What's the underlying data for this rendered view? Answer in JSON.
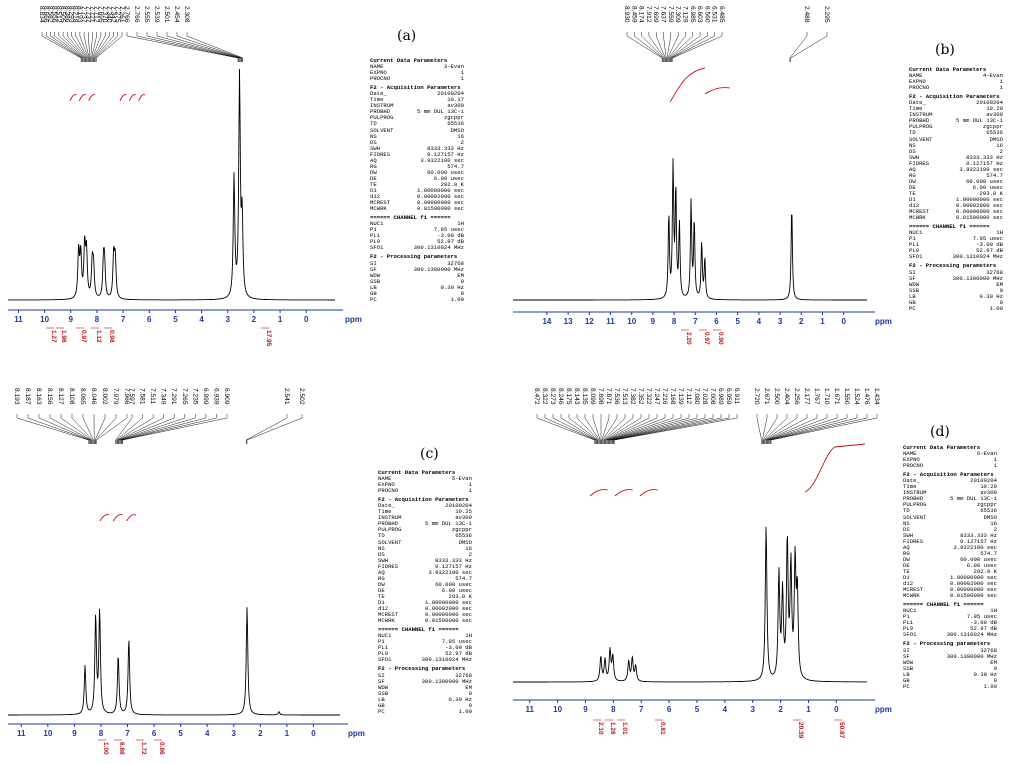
{
  "colors": {
    "spectrum": "#000000",
    "axis": "#1a3a9a",
    "integral": "#c0121a"
  },
  "parameters": {
    "a": {
      "name": "3-Evan",
      "time": "10.17",
      "te": "292.9 K"
    },
    "b": {
      "name": "4-Evan",
      "time": "10.20",
      "te": "293.0 K"
    },
    "c": {
      "name": "5-Evan",
      "time": "10.25",
      "te": "293.0 K"
    },
    "d": {
      "name": "6-Evan",
      "time": "10.29",
      "te": "292.9 K"
    },
    "common": {
      "header": "Current Data Parameters",
      "expno": "1",
      "procno": "1",
      "acq_header": "F2 - Acquisition Parameters",
      "date": "20100204",
      "instrum": "av300",
      "probhd": "5 mm DUL 13C-1",
      "pulprog": "zgcppr",
      "td": "65536",
      "solvent": "DMSO",
      "ns": "16",
      "ds": "2",
      "swh": "8333.333 Hz",
      "fidres": "0.127157 Hz",
      "aq": "3.9322100 sec",
      "rg": "574.7",
      "dw": "60.000 usec",
      "de": "6.00 usec",
      "d1": "1.00000000 sec",
      "d12": "0.00002000 sec",
      "mcrest": "0.00000000 sec",
      "mcwrk": "0.01500000 sec",
      "ch_header": "====== CHANNEL f1 ======",
      "nuc1": "1H",
      "p1": "7.95 usec",
      "pl1": "-3.00 dB",
      "pl9": "52.97 dB",
      "sfo1": "300.1310024 MHz",
      "proc_header": "F2 - Processing parameters",
      "si": "32768",
      "sf": "300.1300000 MHz",
      "wdw": "EM",
      "ssb": "0",
      "lb": "0.30 Hz",
      "gb": "0",
      "pc": "1.00"
    }
  },
  "chart_data": [
    {
      "type": "line",
      "panel": "(a)",
      "axis_label": "ppm",
      "xlim": [
        11.4,
        -1.1
      ],
      "ticks": [
        11,
        10,
        9,
        8,
        7,
        6,
        5,
        4,
        3,
        2,
        1,
        0
      ],
      "peaks": [
        {
          "ppm": 8.7,
          "h": 0.22
        },
        {
          "ppm": 8.62,
          "h": 0.2
        },
        {
          "ppm": 8.47,
          "h": 0.24
        },
        {
          "ppm": 8.4,
          "h": 0.21
        },
        {
          "ppm": 8.18,
          "h": 0.16
        },
        {
          "ppm": 8.13,
          "h": 0.14
        },
        {
          "ppm": 7.75,
          "h": 0.16
        },
        {
          "ppm": 7.71,
          "h": 0.15
        },
        {
          "ppm": 7.36,
          "h": 0.2
        },
        {
          "ppm": 7.3,
          "h": 0.18
        },
        {
          "ppm": 2.76,
          "h": 0.55
        },
        {
          "ppm": 2.55,
          "h": 1.0
        },
        {
          "ppm": 2.45,
          "h": 0.35
        }
      ],
      "peak_labels": [
        "8.834",
        "8.666",
        "8.582",
        "8.556",
        "8.512",
        "8.505",
        "8.386",
        "8.293",
        "8.218",
        "8.193",
        "7.737",
        "7.737",
        "7.721",
        "7.712",
        "7.695",
        "7.370",
        "7.340",
        "7.342",
        "7.275",
        "7.261",
        "2.766",
        "2.766",
        "2.555",
        "2.539",
        "2.501",
        "2.454",
        "2.308"
      ],
      "integrals": [
        "1.27",
        "1.96",
        "0.97",
        "1.12",
        "0.98",
        "17.95"
      ]
    },
    {
      "type": "line",
      "panel": "(b)",
      "axis_label": "ppm",
      "xlim": [
        15.6,
        -1.1
      ],
      "ticks": [
        14,
        13,
        12,
        11,
        10,
        9,
        8,
        7,
        6,
        5,
        4,
        3,
        2,
        1,
        0
      ],
      "peaks": [
        {
          "ppm": 8.25,
          "h": 0.62
        },
        {
          "ppm": 8.05,
          "h": 1.0
        },
        {
          "ppm": 7.92,
          "h": 0.8
        },
        {
          "ppm": 7.75,
          "h": 0.55
        },
        {
          "ppm": 7.2,
          "h": 0.72
        },
        {
          "ppm": 7.05,
          "h": 0.58
        },
        {
          "ppm": 6.7,
          "h": 0.42
        },
        {
          "ppm": 6.55,
          "h": 0.3
        },
        {
          "ppm": 2.45,
          "h": 0.7
        }
      ],
      "peak_labels": [
        "8.930",
        "8.459",
        "8.174",
        "7.912",
        "7.699",
        "7.637",
        "7.559",
        "7.309",
        "7.129",
        "6.985",
        "6.603",
        "6.560",
        "6.531",
        "6.485",
        "2.488",
        "2.295"
      ],
      "integrals": [
        "2.20",
        "0.97",
        "0.90"
      ]
    },
    {
      "type": "line",
      "panel": "(c)",
      "axis_label": "ppm",
      "xlim": [
        11.5,
        -1.0
      ],
      "ticks": [
        11,
        10,
        9,
        8,
        7,
        6,
        5,
        4,
        3,
        2,
        1,
        0
      ],
      "peaks": [
        {
          "ppm": 8.6,
          "h": 0.45
        },
        {
          "ppm": 8.2,
          "h": 0.9
        },
        {
          "ppm": 8.05,
          "h": 0.95
        },
        {
          "ppm": 7.35,
          "h": 0.55
        },
        {
          "ppm": 6.95,
          "h": 0.7
        },
        {
          "ppm": 2.5,
          "h": 1.0
        },
        {
          "ppm": 1.3,
          "h": 0.03
        }
      ],
      "peak_labels": [
        "8.193",
        "8.187",
        "8.163",
        "8.156",
        "8.127",
        "8.108",
        "8.065",
        "8.046",
        "8.002",
        "7.979",
        "7.966",
        "7.597",
        "7.581",
        "7.511",
        "7.349",
        "7.291",
        "7.265",
        "7.235",
        "6.999",
        "6.939",
        "6.909",
        "2.541",
        "2.502"
      ],
      "integrals": [
        "1.00",
        "6.88",
        "1.72",
        "0.86"
      ]
    },
    {
      "type": "line",
      "panel": "(d)",
      "axis_label": "ppm",
      "xlim": [
        11.6,
        -1.1
      ],
      "ticks": [
        11,
        10,
        9,
        8,
        7,
        6,
        5,
        4,
        3,
        2,
        1,
        0
      ],
      "peaks": [
        {
          "ppm": 8.45,
          "h": 0.16
        },
        {
          "ppm": 8.3,
          "h": 0.14
        },
        {
          "ppm": 8.12,
          "h": 0.2
        },
        {
          "ppm": 8.02,
          "h": 0.16
        },
        {
          "ppm": 7.45,
          "h": 0.13
        },
        {
          "ppm": 7.32,
          "h": 0.15
        },
        {
          "ppm": 7.2,
          "h": 0.1
        },
        {
          "ppm": 2.52,
          "h": 1.0
        },
        {
          "ppm": 2.06,
          "h": 0.68
        },
        {
          "ppm": 1.93,
          "h": 0.55
        },
        {
          "ppm": 1.76,
          "h": 0.88
        },
        {
          "ppm": 1.63,
          "h": 0.72
        },
        {
          "ppm": 1.48,
          "h": 0.74
        },
        {
          "ppm": 1.4,
          "h": 0.55
        }
      ],
      "peak_labels": [
        "8.472",
        "8.322",
        "8.273",
        "8.246",
        "8.175",
        "8.143",
        "8.135",
        "8.099",
        "7.898",
        "7.871",
        "7.536",
        "7.513",
        "7.382",
        "7.352",
        "7.322",
        "7.247",
        "7.216",
        "7.168",
        "7.139",
        "7.112",
        "7.080",
        "7.028",
        "7.008",
        "6.989",
        "6.959",
        "6.911",
        "2.720",
        "2.671",
        "2.500",
        "2.404",
        "2.256",
        "2.177",
        "1.767",
        "1.710",
        "1.671",
        "1.550",
        "1.524",
        "1.476",
        "1.434"
      ],
      "integrals": [
        "2.10",
        "1.26",
        "1.01",
        "0.81",
        "20.39",
        "50.87"
      ]
    }
  ]
}
